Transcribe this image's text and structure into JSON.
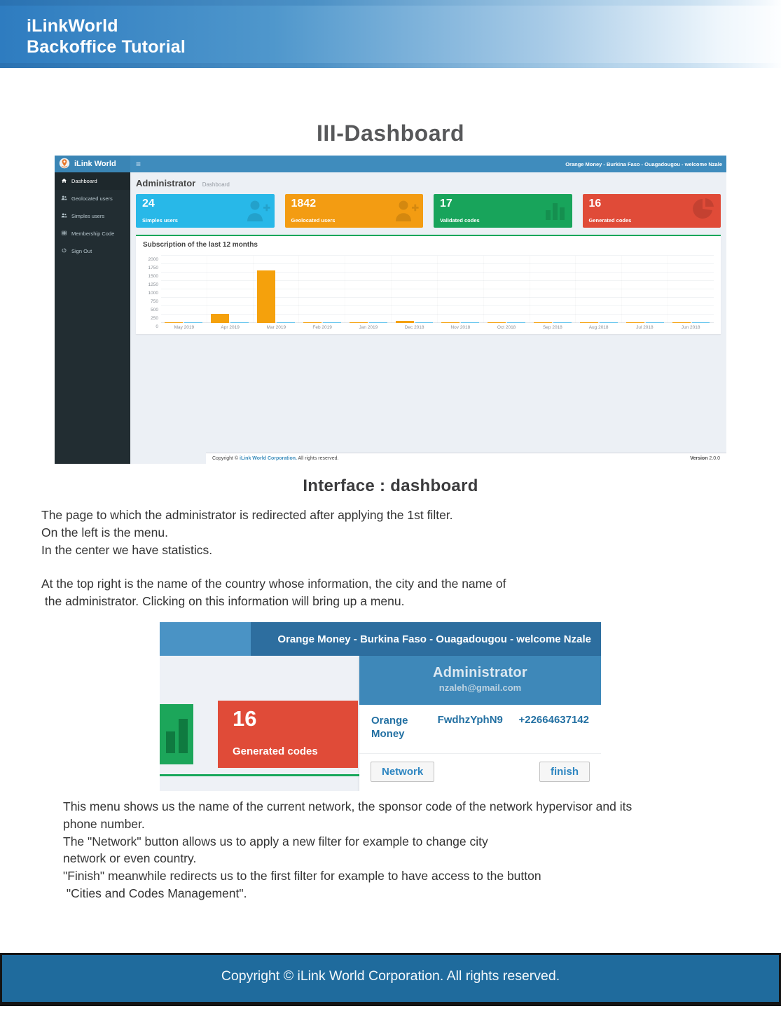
{
  "banner": {
    "line1": "iLinkWorld",
    "line2": "Backoffice Tutorial"
  },
  "doc_title": "III-Dashboard",
  "dashboard": {
    "brand": "iLink World",
    "menu_icon": "≡",
    "user_info": "Orange Money - Burkina Faso - Ouagadougou - welcome Nzale",
    "sidebar": [
      {
        "label": "Dashboard",
        "icon": "home-icon",
        "active": true
      },
      {
        "label": "Geolocated users",
        "icon": "users-icon",
        "active": false
      },
      {
        "label": "Simples users",
        "icon": "users-icon",
        "active": false
      },
      {
        "label": "Membership Code",
        "icon": "table-icon",
        "active": false
      },
      {
        "label": "Sign Out",
        "icon": "power-icon",
        "active": false
      }
    ],
    "heading": {
      "title": "Administrator",
      "subtitle": "Dashboard"
    },
    "cards": [
      {
        "value": "24",
        "label": "Simples users",
        "color": "#28b8e8",
        "icon": "user-plus-icon"
      },
      {
        "value": "1842",
        "label": "Geolocated users",
        "color": "#f39c12",
        "icon": "user-plus-icon"
      },
      {
        "value": "17",
        "label": "Validated codes",
        "color": "#18a45b",
        "icon": "bar-chart-icon"
      },
      {
        "value": "16",
        "label": "Generated codes",
        "color": "#e04b38",
        "icon": "pie-chart-icon"
      }
    ],
    "footer": {
      "copyright_prefix": "Copyright © ",
      "company": "iLink World Corporation.",
      "copyright_suffix": " All rights reserved.",
      "version_label": "Version",
      "version_value": " 2.0.0"
    }
  },
  "chart_data": {
    "type": "bar",
    "title": "Subscription of the last 12 months",
    "categories": [
      "May 2019",
      "Apr 2019",
      "Mar 2019",
      "Feb 2019",
      "Jan 2019",
      "Dec 2018",
      "Nov 2018",
      "Oct 2018",
      "Sep 2018",
      "Aug 2018",
      "Jul 2018",
      "Jun 2018"
    ],
    "series": [
      {
        "name": "orange",
        "color": "#f5a10c",
        "values": [
          10,
          270,
          1560,
          15,
          10,
          70,
          20,
          10,
          10,
          15,
          10,
          15
        ]
      },
      {
        "name": "light-blue",
        "color": "#62c4ee",
        "values": [
          15,
          20,
          25,
          20,
          18,
          20,
          18,
          15,
          15,
          18,
          15,
          18
        ]
      }
    ],
    "ylim": [
      0,
      2000
    ],
    "yticks": [
      0,
      250,
      500,
      750,
      1000,
      1250,
      1500,
      1750,
      2000
    ],
    "grid": true,
    "legend": false
  },
  "interface_caption": "Interface : dashboard",
  "paragraphs": {
    "p1": [
      "The page to which the administrator is redirected after applying the 1st filter.",
      "On the left is the menu.",
      "In the center we have statistics."
    ],
    "p2": [
      "At the top right is the name of the country whose information, the city and the name of",
      " the administrator. Clicking on this information will bring up a menu."
    ],
    "p3": [
      "This menu shows us the name of the current network, the sponsor code of the network hypervisor and its",
      "phone number.",
      "The \"Network\" button allows us to apply a new filter for example to change city",
      "network or even country.",
      "\"Finish\" meanwhile redirects us to the first filter for example to have access to the button",
      " \"Cities and Codes Management\"."
    ]
  },
  "menu_shot": {
    "user_info": "Orange Money - Burkina Faso - Ouagadougou - welcome Nzale",
    "card": {
      "value": "16",
      "label": "Generated codes"
    },
    "popup": {
      "title": "Administrator",
      "email": "nzaleh@gmail.com",
      "network_name": "Orange Money",
      "sponsor_code": "FwdhzYphN9",
      "phone": "+22664637142",
      "network_button": "Network",
      "finish_button": "finish"
    }
  },
  "page_footer": "Copyright © iLink World Corporation. All rights reserved."
}
